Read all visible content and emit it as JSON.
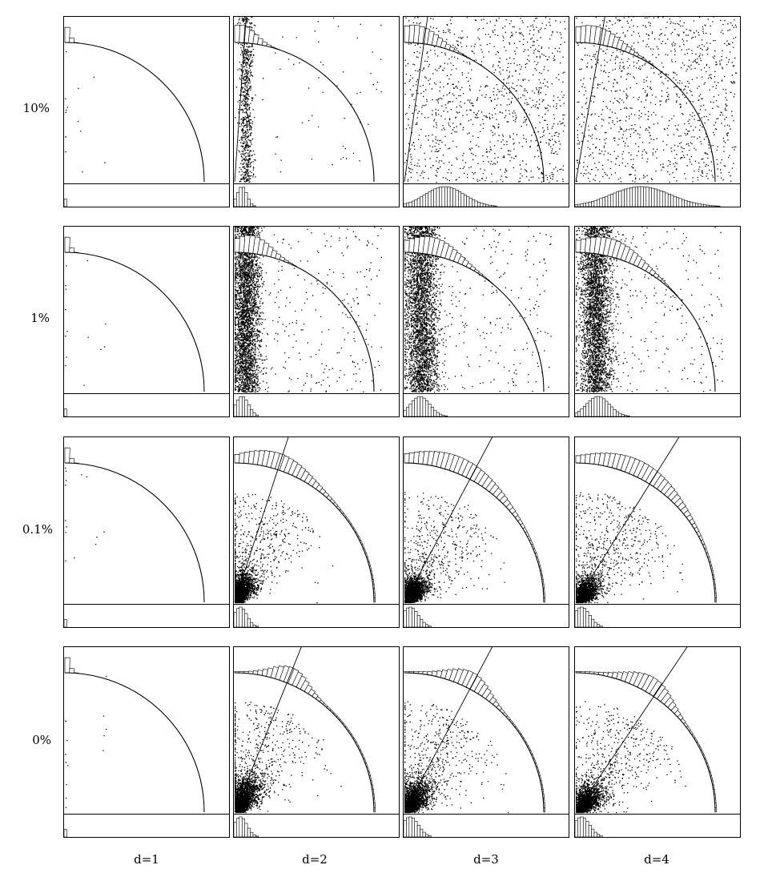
{
  "chart_data": {
    "type": "scatter",
    "layout": "grid",
    "rows": [
      "10%",
      "1%",
      "0.1%",
      "0%"
    ],
    "columns": [
      "d=1",
      "d=2",
      "d=3",
      "d=4"
    ],
    "xlim": [
      0,
      1
    ],
    "ylim": [
      0,
      1
    ],
    "grid": false,
    "elements_per_panel": [
      "quarter-circle arc",
      "angular histogram along arc",
      "radial histogram strip below panel",
      "scatter point cloud",
      "line through origin (except row 1% and column d=1)"
    ],
    "panels": [
      {
        "row": "10%",
        "column": "d=1",
        "cluster_type": "none",
        "line_angle_deg": null,
        "arc_hist_peak_deg": 90,
        "arc_hist_spread": 0.03,
        "bottom_hist_center": 0.0,
        "bottom_hist_spread": 0.004
      },
      {
        "row": "10%",
        "column": "d=2",
        "cluster_type": "vertical",
        "cluster_x": 0.08,
        "cluster_x_spread": 0.025,
        "line_angle_deg": 86,
        "arc_hist_peak_deg": 88,
        "arc_hist_spread": 0.1,
        "bottom_hist_center": 0.05,
        "bottom_hist_spread": 0.03
      },
      {
        "row": "10%",
        "column": "d=3",
        "cluster_type": "uniform",
        "line_angle_deg": 82,
        "arc_hist_peak_deg": 86,
        "arc_hist_spread": 0.15,
        "bottom_hist_center": 0.25,
        "bottom_hist_spread": 0.12
      },
      {
        "row": "10%",
        "column": "d=4",
        "cluster_type": "uniform",
        "line_angle_deg": 80,
        "arc_hist_peak_deg": 84,
        "arc_hist_spread": 0.18,
        "bottom_hist_center": 0.4,
        "bottom_hist_spread": 0.18
      },
      {
        "row": "1%",
        "column": "d=1",
        "cluster_type": "none",
        "line_angle_deg": null,
        "arc_hist_peak_deg": 90,
        "arc_hist_spread": 0.03,
        "bottom_hist_center": 0.0,
        "bottom_hist_spread": 0.004
      },
      {
        "row": "1%",
        "column": "d=2",
        "cluster_type": "vertical",
        "cluster_x": 0.08,
        "cluster_x_spread": 0.05,
        "line_angle_deg": null,
        "arc_hist_peak_deg": 84,
        "arc_hist_spread": 0.13,
        "bottom_hist_center": 0.05,
        "bottom_hist_spread": 0.04
      },
      {
        "row": "1%",
        "column": "d=3",
        "cluster_type": "vertical",
        "cluster_x": 0.12,
        "cluster_x_spread": 0.06,
        "line_angle_deg": null,
        "arc_hist_peak_deg": 80,
        "arc_hist_spread": 0.18,
        "bottom_hist_center": 0.1,
        "bottom_hist_spread": 0.06
      },
      {
        "row": "1%",
        "column": "d=4",
        "cluster_type": "vertical",
        "cluster_x": 0.14,
        "cluster_x_spread": 0.06,
        "line_angle_deg": null,
        "arc_hist_peak_deg": 78,
        "arc_hist_spread": 0.22,
        "bottom_hist_center": 0.14,
        "bottom_hist_spread": 0.07
      },
      {
        "row": "0.1%",
        "column": "d=1",
        "cluster_type": "none",
        "line_angle_deg": null,
        "arc_hist_peak_deg": 90,
        "arc_hist_spread": 0.03,
        "bottom_hist_center": 0.0,
        "bottom_hist_spread": 0.004
      },
      {
        "row": "0.1%",
        "column": "d=2",
        "cluster_type": "diagonal",
        "cluster_r": 0.15,
        "cluster_spread": 0.06,
        "line_angle_deg": 72,
        "arc_hist_peak_deg": 74,
        "arc_hist_spread": 0.22,
        "bottom_hist_center": 0.04,
        "bottom_hist_spread": 0.04
      },
      {
        "row": "0.1%",
        "column": "d=3",
        "cluster_type": "diagonal",
        "cluster_r": 0.13,
        "cluster_spread": 0.06,
        "line_angle_deg": 62,
        "arc_hist_peak_deg": 70,
        "arc_hist_spread": 0.3,
        "bottom_hist_center": 0.04,
        "bottom_hist_spread": 0.05
      },
      {
        "row": "0.1%",
        "column": "d=4",
        "cluster_type": "diagonal",
        "cluster_r": 0.13,
        "cluster_spread": 0.06,
        "line_angle_deg": 58,
        "arc_hist_peak_deg": 66,
        "arc_hist_spread": 0.3,
        "bottom_hist_center": 0.04,
        "bottom_hist_spread": 0.05
      },
      {
        "row": "0%",
        "column": "d=1",
        "cluster_type": "none",
        "line_angle_deg": null,
        "arc_hist_peak_deg": 90,
        "arc_hist_spread": 0.03,
        "bottom_hist_center": 0.0,
        "bottom_hist_spread": 0.004
      },
      {
        "row": "0%",
        "column": "d=2",
        "cluster_type": "diagonal",
        "cluster_r": 0.18,
        "cluster_spread": 0.06,
        "line_angle_deg": 68,
        "arc_hist_peak_deg": 68,
        "arc_hist_spread": 0.12,
        "bottom_hist_center": 0.04,
        "bottom_hist_spread": 0.04
      },
      {
        "row": "0%",
        "column": "d=3",
        "cluster_type": "diagonal",
        "cluster_r": 0.16,
        "cluster_spread": 0.06,
        "line_angle_deg": 62,
        "arc_hist_peak_deg": 64,
        "arc_hist_spread": 0.14,
        "bottom_hist_center": 0.04,
        "bottom_hist_spread": 0.05
      },
      {
        "row": "0%",
        "column": "d=4",
        "cluster_type": "diagonal",
        "cluster_r": 0.15,
        "cluster_spread": 0.06,
        "line_angle_deg": 56,
        "arc_hist_peak_deg": 60,
        "arc_hist_spread": 0.16,
        "bottom_hist_center": 0.04,
        "bottom_hist_spread": 0.05
      }
    ]
  }
}
